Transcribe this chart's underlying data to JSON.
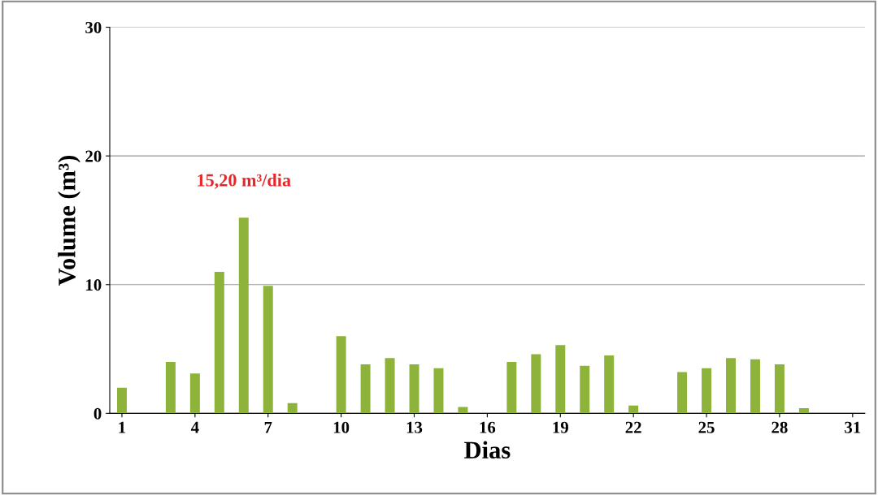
{
  "chart_data": {
    "type": "bar",
    "xlabel": "Dias",
    "ylabel": "Volume (m³)",
    "categories": [
      "1",
      null,
      null,
      "4",
      null,
      null,
      "7",
      null,
      null,
      "10",
      null,
      null,
      "13",
      null,
      null,
      "16",
      null,
      null,
      "19",
      null,
      null,
      "22",
      null,
      null,
      "25",
      null,
      null,
      "28",
      null,
      null,
      "31"
    ],
    "values": [
      2.0,
      null,
      4.0,
      3.1,
      11.0,
      15.2,
      9.9,
      0.8,
      null,
      6.0,
      3.8,
      4.3,
      3.8,
      3.5,
      0.5,
      null,
      4.0,
      4.6,
      5.3,
      3.7,
      4.5,
      0.6,
      null,
      3.2,
      3.5,
      4.3,
      4.2,
      3.8,
      0.4,
      null,
      null
    ],
    "color": "#8db33a",
    "ylim": [
      0,
      30
    ],
    "yticks": [
      0,
      10,
      20,
      30
    ],
    "grid": "y",
    "annotations": [
      "15,20 m³/dia"
    ]
  }
}
